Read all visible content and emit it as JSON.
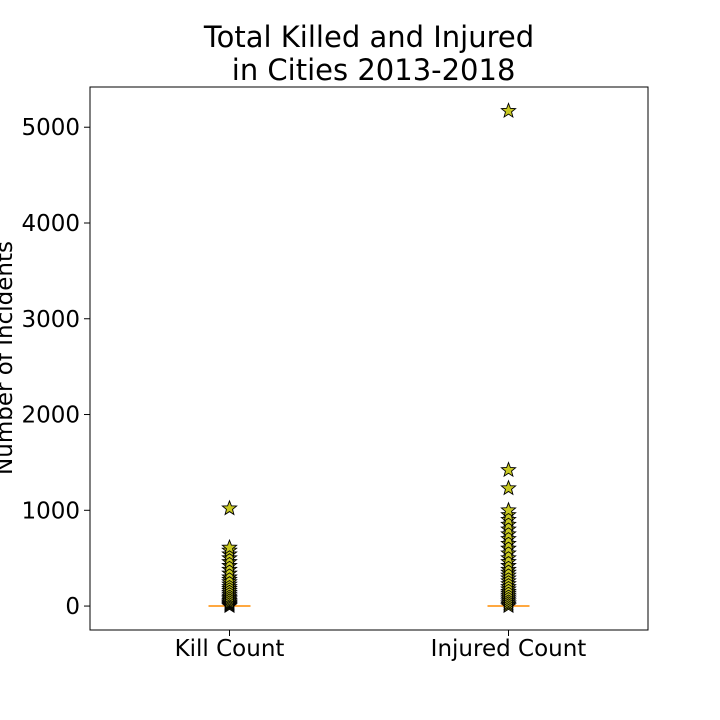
{
  "chart_data": {
    "type": "boxplot",
    "title_lines": [
      "Total Killed and Injured",
      " in Cities 2013-2018"
    ],
    "ylabel": "Number of Incidents",
    "xlabel": "",
    "categories": [
      "Kill Count",
      "Injured Count"
    ],
    "ylim": [
      -250,
      5420
    ],
    "yticks": [
      0,
      1000,
      2000,
      3000,
      4000,
      5000
    ],
    "grid": false,
    "legend": "none",
    "median_color": "#ff8c00",
    "flier_color": "#c8c820",
    "flier_marker": "star",
    "boxes": [
      {
        "name": "Kill Count",
        "median": 0,
        "outliers": [
          0,
          10,
          20,
          30,
          40,
          55,
          70,
          85,
          100,
          120,
          140,
          160,
          180,
          200,
          225,
          250,
          275,
          300,
          340,
          380,
          420,
          460,
          500,
          540,
          580,
          610,
          1020
        ]
      },
      {
        "name": "Injured Count",
        "median": 0,
        "outliers": [
          0,
          15,
          30,
          50,
          70,
          90,
          110,
          130,
          150,
          175,
          200,
          230,
          260,
          290,
          320,
          350,
          380,
          420,
          460,
          500,
          550,
          600,
          650,
          700,
          750,
          800,
          850,
          900,
          950,
          1000,
          1230,
          1420,
          5170
        ]
      }
    ]
  }
}
